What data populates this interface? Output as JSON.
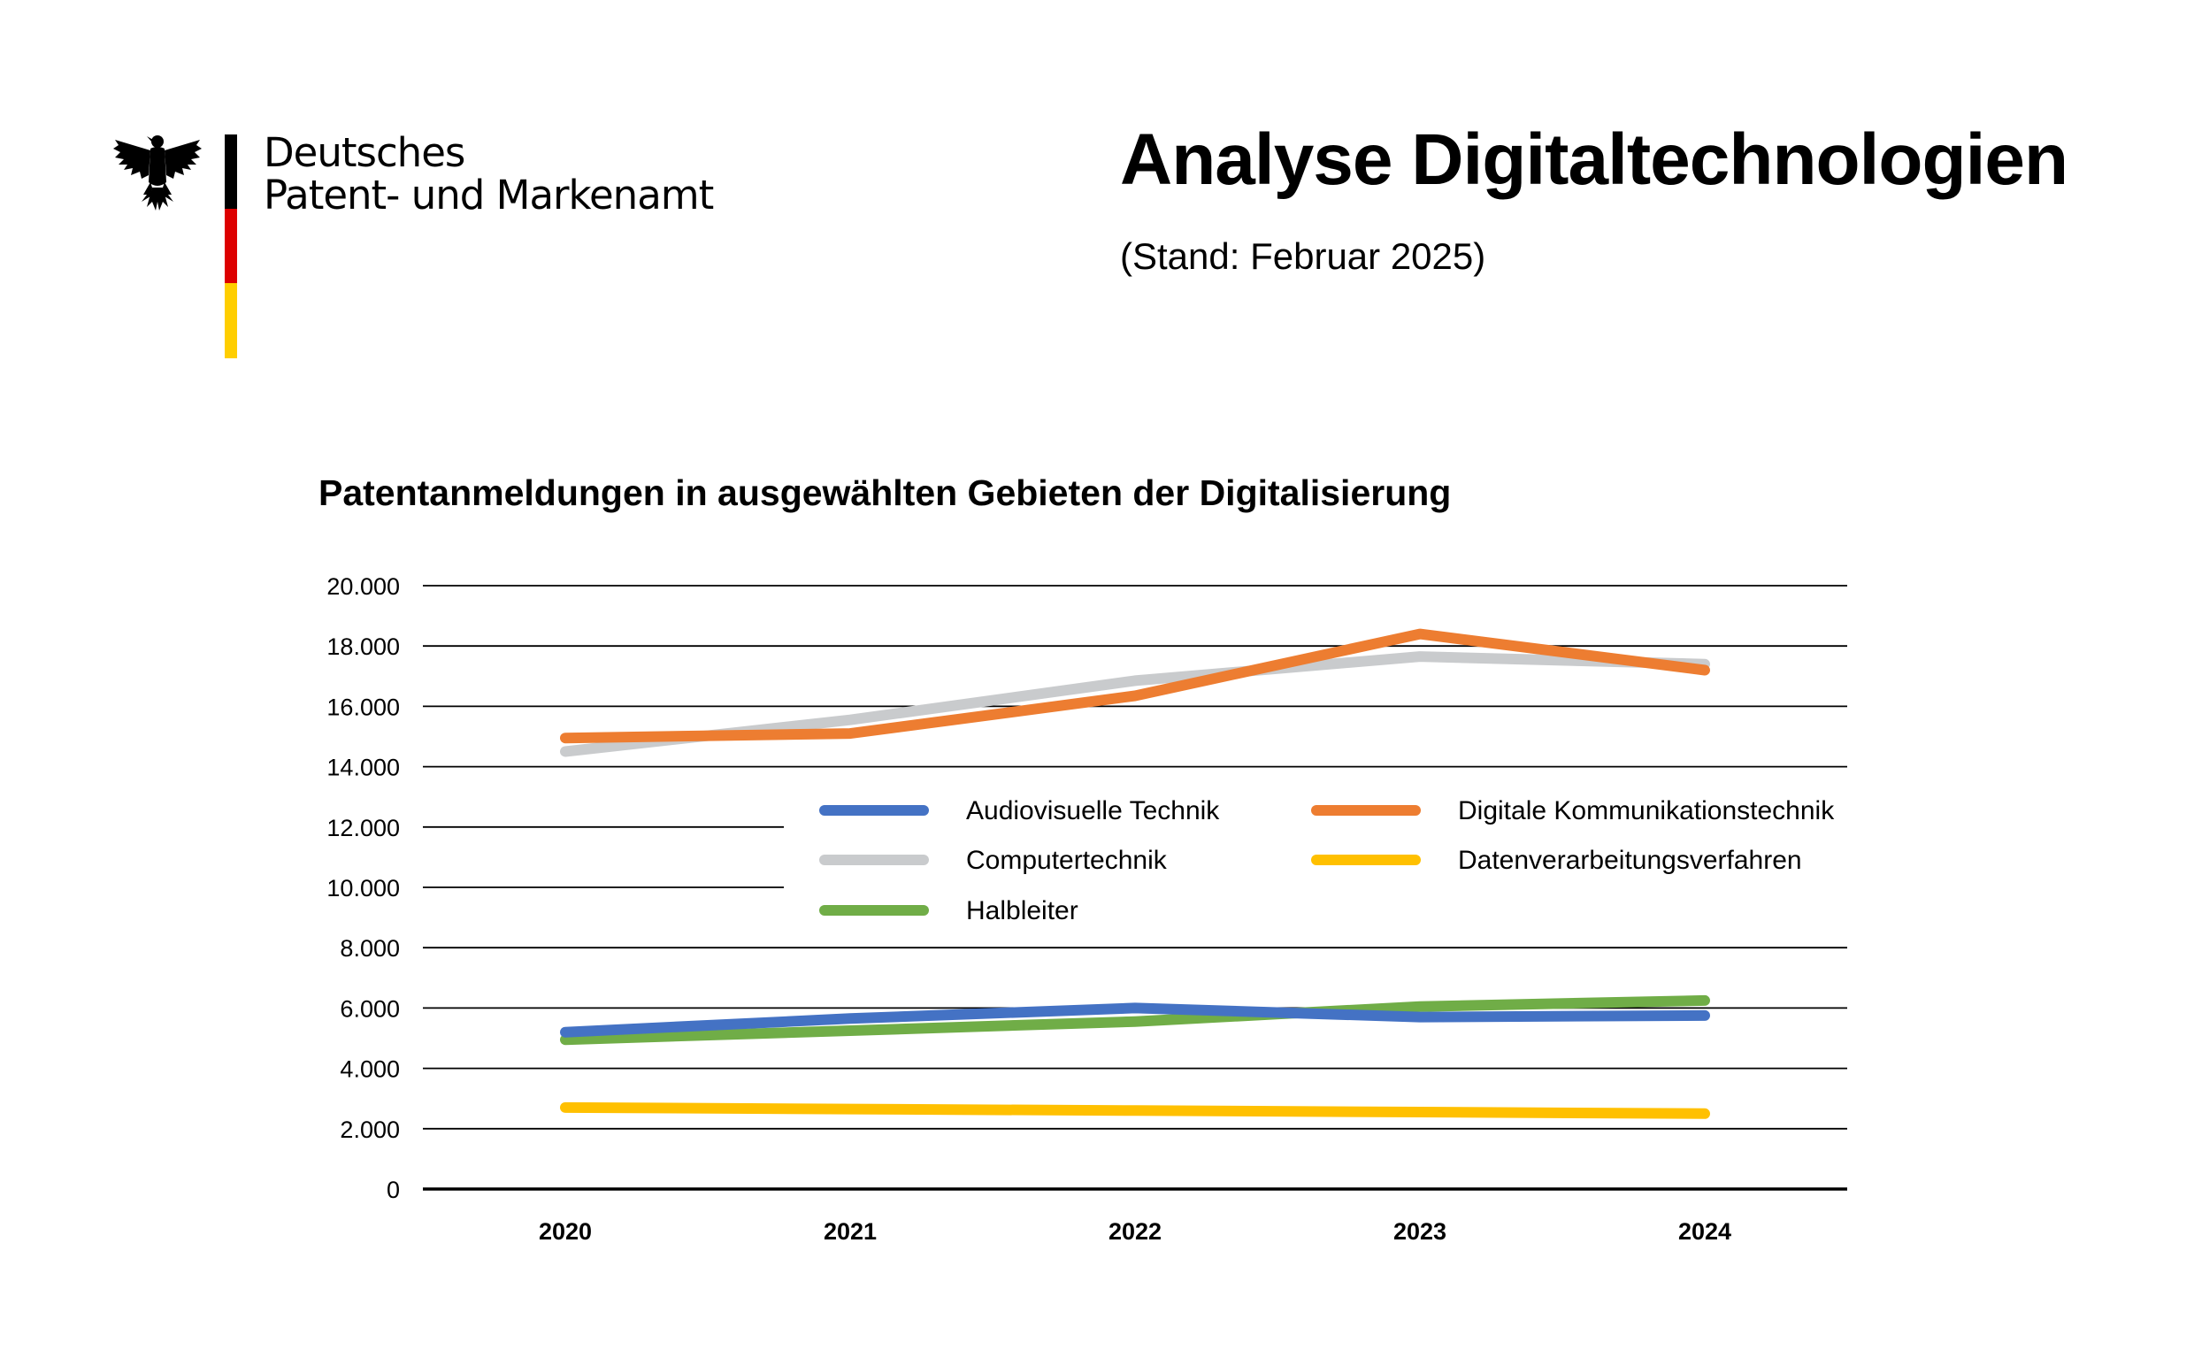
{
  "organization": {
    "line1": "Deutsches",
    "line2": "Patent- und Markenamt",
    "logo_icon": "federal-eagle-icon",
    "flag_colors": [
      "#000000",
      "#dd0000",
      "#ffce00"
    ]
  },
  "header": {
    "title": "Analyse Digitaltechnologien",
    "subtitle": "(Stand: Februar 2025)"
  },
  "chart_data": {
    "type": "line",
    "title": "Patentanmeldungen in ausgewählten Gebieten der Digitalisierung",
    "xlabel": "",
    "ylabel": "",
    "categories": [
      "2020",
      "2021",
      "2022",
      "2023",
      "2024"
    ],
    "ylim": [
      0,
      20000
    ],
    "yticks": [
      0,
      2000,
      4000,
      6000,
      8000,
      10000,
      12000,
      14000,
      16000,
      18000,
      20000
    ],
    "ytick_labels": [
      "0",
      "2.000",
      "4.000",
      "6.000",
      "8.000",
      "10.000",
      "12.000",
      "14.000",
      "16.000",
      "18.000",
      "20.000"
    ],
    "grid": true,
    "legend_position": "center-right",
    "series": [
      {
        "name": "Audiovisuelle Technik",
        "color": "#4472c4",
        "values": [
          5200,
          5650,
          6000,
          5700,
          5750
        ]
      },
      {
        "name": "Digitale Kommunikationstechnik",
        "color": "#ed7d31",
        "values": [
          14950,
          15100,
          16350,
          18400,
          17200
        ]
      },
      {
        "name": "Computertechnik",
        "color": "#c9cbcd",
        "values": [
          14500,
          15550,
          16850,
          17650,
          17400
        ]
      },
      {
        "name": "Datenverarbeitungsverfahren",
        "color": "#ffc000",
        "values": [
          2700,
          2650,
          2600,
          2550,
          2500
        ]
      },
      {
        "name": "Halbleiter",
        "color": "#70ad47",
        "values": [
          4950,
          5250,
          5550,
          6050,
          6250
        ]
      }
    ]
  }
}
